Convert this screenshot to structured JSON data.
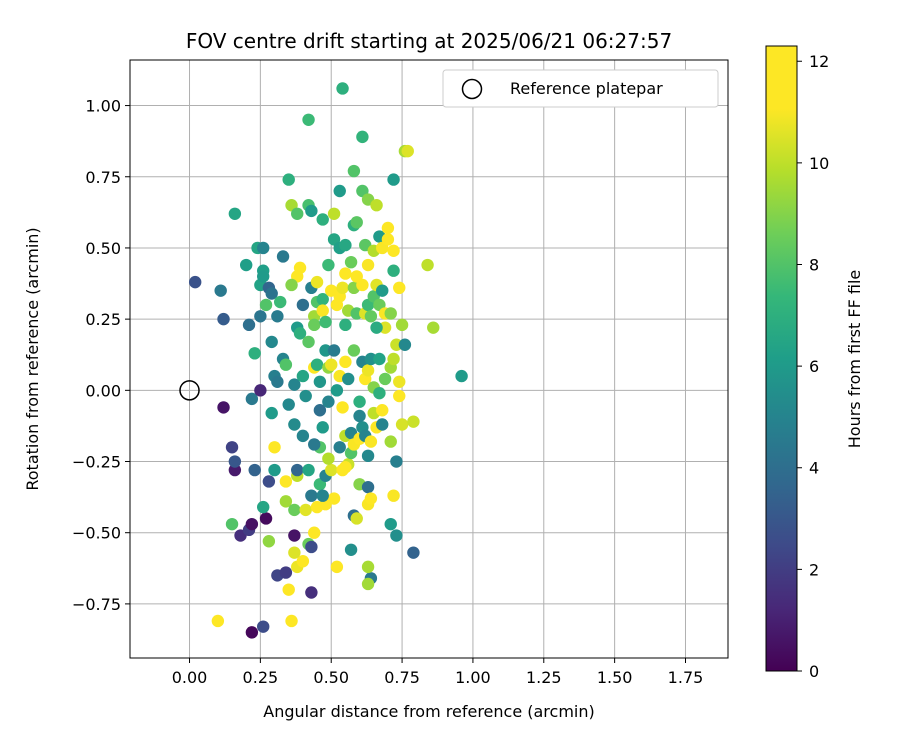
{
  "chart_data": {
    "type": "scatter",
    "title": "FOV centre drift starting at 2025/06/21 06:27:57",
    "xlabel": "Angular distance from reference (arcmin)",
    "ylabel": "Rotation from reference (arcmin)",
    "xlim": [
      -0.21,
      1.9
    ],
    "ylim": [
      -0.94,
      1.16
    ],
    "x_ticks": [
      "0.00",
      "0.25",
      "0.50",
      "0.75",
      "1.00",
      "1.25",
      "1.50",
      "1.75"
    ],
    "x_tick_values": [
      0,
      0.25,
      0.5,
      0.75,
      1.0,
      1.25,
      1.5,
      1.75
    ],
    "y_ticks": [
      "−0.75",
      "−0.50",
      "−0.25",
      "0.00",
      "0.25",
      "0.50",
      "0.75",
      "1.00"
    ],
    "y_tick_values": [
      -0.75,
      -0.5,
      -0.25,
      0,
      0.25,
      0.5,
      0.75,
      1.0
    ],
    "grid": true,
    "legend": {
      "position": "upper right",
      "entries": [
        {
          "label": "Reference platepar",
          "marker": "open-circle"
        }
      ]
    },
    "reference_point": {
      "x": 0.0,
      "y": 0.0
    },
    "colorbar": {
      "label": "Hours from first FF file",
      "range": [
        0,
        12.3
      ],
      "ticks": [
        "0",
        "2",
        "4",
        "6",
        "8",
        "10",
        "12"
      ],
      "tick_values": [
        0,
        2,
        4,
        6,
        8,
        10,
        12
      ],
      "colormap": "viridis"
    },
    "points": [
      {
        "x": 0.1,
        "y": -0.81,
        "h": 12.0
      },
      {
        "x": 0.22,
        "y": -0.85,
        "h": 0.2
      },
      {
        "x": 0.26,
        "y": -0.83,
        "h": 2.6
      },
      {
        "x": 0.36,
        "y": -0.81,
        "h": 11.8
      },
      {
        "x": 0.35,
        "y": -0.7,
        "h": 11.5
      },
      {
        "x": 0.43,
        "y": -0.71,
        "h": 1.5
      },
      {
        "x": 0.31,
        "y": -0.65,
        "h": 2.3
      },
      {
        "x": 0.34,
        "y": -0.64,
        "h": 2.0
      },
      {
        "x": 0.38,
        "y": -0.62,
        "h": 10.8
      },
      {
        "x": 0.4,
        "y": -0.6,
        "h": 12.0
      },
      {
        "x": 0.52,
        "y": -0.62,
        "h": 11.8
      },
      {
        "x": 0.64,
        "y": -0.66,
        "h": 4.5
      },
      {
        "x": 0.63,
        "y": -0.68,
        "h": 9.5
      },
      {
        "x": 0.18,
        "y": -0.51,
        "h": 1.5
      },
      {
        "x": 0.21,
        "y": -0.49,
        "h": 2.0
      },
      {
        "x": 0.22,
        "y": -0.47,
        "h": 0.5
      },
      {
        "x": 0.15,
        "y": -0.47,
        "h": 8.0
      },
      {
        "x": 0.28,
        "y": -0.53,
        "h": 9.2
      },
      {
        "x": 0.27,
        "y": -0.45,
        "h": 0.3
      },
      {
        "x": 0.37,
        "y": -0.51,
        "h": 0.6
      },
      {
        "x": 0.42,
        "y": -0.54,
        "h": 8.5
      },
      {
        "x": 0.43,
        "y": -0.55,
        "h": 2.6
      },
      {
        "x": 0.37,
        "y": -0.57,
        "h": 10.5
      },
      {
        "x": 0.44,
        "y": -0.5,
        "h": 12.0
      },
      {
        "x": 0.57,
        "y": -0.56,
        "h": 5.5
      },
      {
        "x": 0.63,
        "y": -0.62,
        "h": 9.6
      },
      {
        "x": 0.71,
        "y": -0.47,
        "h": 6.0
      },
      {
        "x": 0.73,
        "y": -0.51,
        "h": 5.5
      },
      {
        "x": 0.79,
        "y": -0.57,
        "h": 3.5
      },
      {
        "x": 0.16,
        "y": -0.28,
        "h": 0.8
      },
      {
        "x": 0.16,
        "y": -0.25,
        "h": 3.0
      },
      {
        "x": 0.15,
        "y": -0.2,
        "h": 2.2
      },
      {
        "x": 0.23,
        "y": -0.28,
        "h": 3.5
      },
      {
        "x": 0.26,
        "y": -0.41,
        "h": 6.5
      },
      {
        "x": 0.28,
        "y": -0.32,
        "h": 2.6
      },
      {
        "x": 0.3,
        "y": -0.28,
        "h": 6.0
      },
      {
        "x": 0.3,
        "y": -0.2,
        "h": 11.6
      },
      {
        "x": 0.34,
        "y": -0.39,
        "h": 9.5
      },
      {
        "x": 0.34,
        "y": -0.32,
        "h": 11.8
      },
      {
        "x": 0.37,
        "y": -0.42,
        "h": 8.5
      },
      {
        "x": 0.38,
        "y": -0.3,
        "h": 10.0
      },
      {
        "x": 0.38,
        "y": -0.28,
        "h": 3.6
      },
      {
        "x": 0.41,
        "y": -0.42,
        "h": 10.6
      },
      {
        "x": 0.43,
        "y": -0.37,
        "h": 4.5
      },
      {
        "x": 0.45,
        "y": -0.41,
        "h": 11.8
      },
      {
        "x": 0.46,
        "y": -0.33,
        "h": 7.5
      },
      {
        "x": 0.48,
        "y": -0.3,
        "h": 5.0
      },
      {
        "x": 0.48,
        "y": -0.4,
        "h": 12.0
      },
      {
        "x": 0.51,
        "y": -0.38,
        "h": 11.4
      },
      {
        "x": 0.5,
        "y": -0.28,
        "h": 10.5
      },
      {
        "x": 0.49,
        "y": -0.24,
        "h": 9.8
      },
      {
        "x": 0.54,
        "y": -0.28,
        "h": 11.8
      },
      {
        "x": 0.56,
        "y": -0.26,
        "h": 10.2
      },
      {
        "x": 0.58,
        "y": -0.44,
        "h": 4.0
      },
      {
        "x": 0.59,
        "y": -0.45,
        "h": 10.4
      },
      {
        "x": 0.6,
        "y": -0.33,
        "h": 9.0
      },
      {
        "x": 0.63,
        "y": -0.34,
        "h": 4.0
      },
      {
        "x": 0.63,
        "y": -0.4,
        "h": 11.0
      },
      {
        "x": 0.64,
        "y": -0.38,
        "h": 11.8
      },
      {
        "x": 0.72,
        "y": -0.37,
        "h": 11.0
      },
      {
        "x": 0.73,
        "y": -0.25,
        "h": 4.8
      },
      {
        "x": 0.02,
        "y": 0.38,
        "h": 2.8
      },
      {
        "x": 0.11,
        "y": 0.35,
        "h": 4.5
      },
      {
        "x": 0.12,
        "y": 0.25,
        "h": 3.2
      },
      {
        "x": 0.12,
        "y": -0.06,
        "h": 0.6
      },
      {
        "x": 0.16,
        "y": 0.62,
        "h": 6.5
      },
      {
        "x": 0.2,
        "y": 0.44,
        "h": 6.2
      },
      {
        "x": 0.21,
        "y": 0.23,
        "h": 4.0
      },
      {
        "x": 0.22,
        "y": -0.03,
        "h": 4.5
      },
      {
        "x": 0.23,
        "y": 0.13,
        "h": 7.0
      },
      {
        "x": 0.24,
        "y": 0.5,
        "h": 6.5
      },
      {
        "x": 0.25,
        "y": 0.37,
        "h": 6.4
      },
      {
        "x": 0.25,
        "y": 0.26,
        "h": 4.3
      },
      {
        "x": 0.25,
        "y": 0.0,
        "h": 1.2
      },
      {
        "x": 0.26,
        "y": 0.42,
        "h": 6.2
      },
      {
        "x": 0.26,
        "y": 0.4,
        "h": 6.0
      },
      {
        "x": 0.26,
        "y": 0.5,
        "h": 5.0
      },
      {
        "x": 0.27,
        "y": 0.3,
        "h": 8.0
      },
      {
        "x": 0.28,
        "y": 0.36,
        "h": 3.6
      },
      {
        "x": 0.29,
        "y": 0.34,
        "h": 4.2
      },
      {
        "x": 0.29,
        "y": 0.17,
        "h": 5.2
      },
      {
        "x": 0.3,
        "y": 0.05,
        "h": 4.8
      },
      {
        "x": 0.31,
        "y": 0.03,
        "h": 4.5
      },
      {
        "x": 0.29,
        "y": -0.08,
        "h": 6.0
      },
      {
        "x": 0.31,
        "y": 0.26,
        "h": 4.6
      },
      {
        "x": 0.32,
        "y": 0.31,
        "h": 7.5
      },
      {
        "x": 0.33,
        "y": 0.47,
        "h": 4.5
      },
      {
        "x": 0.33,
        "y": 0.11,
        "h": 5.0
      },
      {
        "x": 0.35,
        "y": 0.74,
        "h": 7.0
      },
      {
        "x": 0.35,
        "y": -0.05,
        "h": 5.2
      },
      {
        "x": 0.36,
        "y": 0.65,
        "h": 9.6
      },
      {
        "x": 0.37,
        "y": 0.02,
        "h": 5.0
      },
      {
        "x": 0.37,
        "y": -0.12,
        "h": 5.3
      },
      {
        "x": 0.38,
        "y": 0.62,
        "h": 8.0
      },
      {
        "x": 0.38,
        "y": 0.4,
        "h": 11.3
      },
      {
        "x": 0.38,
        "y": 0.22,
        "h": 6.0
      },
      {
        "x": 0.39,
        "y": 0.2,
        "h": 7.0
      },
      {
        "x": 0.4,
        "y": 0.3,
        "h": 4.0
      },
      {
        "x": 0.4,
        "y": 0.05,
        "h": 6.5
      },
      {
        "x": 0.41,
        "y": -0.02,
        "h": 5.5
      },
      {
        "x": 0.42,
        "y": 0.95,
        "h": 7.5
      },
      {
        "x": 0.42,
        "y": 0.65,
        "h": 7.8
      },
      {
        "x": 0.42,
        "y": 0.17,
        "h": 8.2
      },
      {
        "x": 0.43,
        "y": 0.63,
        "h": 6.0
      },
      {
        "x": 0.43,
        "y": 0.36,
        "h": 4.8
      },
      {
        "x": 0.44,
        "y": 0.26,
        "h": 9.5
      },
      {
        "x": 0.44,
        "y": 0.23,
        "h": 8.5
      },
      {
        "x": 0.44,
        "y": 0.08,
        "h": 12.0
      },
      {
        "x": 0.45,
        "y": 0.38,
        "h": 10.8
      },
      {
        "x": 0.45,
        "y": 0.31,
        "h": 8.0
      },
      {
        "x": 0.45,
        "y": 0.09,
        "h": 7.0
      },
      {
        "x": 0.46,
        "y": 0.03,
        "h": 5.8
      },
      {
        "x": 0.46,
        "y": -0.07,
        "h": 4.0
      },
      {
        "x": 0.46,
        "y": -0.2,
        "h": 8.0
      },
      {
        "x": 0.47,
        "y": 0.6,
        "h": 7.0
      },
      {
        "x": 0.47,
        "y": 0.32,
        "h": 7.2
      },
      {
        "x": 0.47,
        "y": 0.28,
        "h": 11.0
      },
      {
        "x": 0.47,
        "y": -0.13,
        "h": 6.0
      },
      {
        "x": 0.48,
        "y": 0.14,
        "h": 5.8
      },
      {
        "x": 0.49,
        "y": 0.08,
        "h": 9.2
      },
      {
        "x": 0.49,
        "y": -0.04,
        "h": 5.0
      },
      {
        "x": 0.5,
        "y": 0.35,
        "h": 12.0
      },
      {
        "x": 0.5,
        "y": 0.09,
        "h": 10.8
      },
      {
        "x": 0.51,
        "y": 0.62,
        "h": 10.0
      },
      {
        "x": 0.51,
        "y": 0.53,
        "h": 6.5
      },
      {
        "x": 0.51,
        "y": 0.14,
        "h": 4.6
      },
      {
        "x": 0.52,
        "y": 0.3,
        "h": 12.0
      },
      {
        "x": 0.52,
        "y": 0.0,
        "h": 6.0
      },
      {
        "x": 0.53,
        "y": 0.7,
        "h": 6.0
      },
      {
        "x": 0.53,
        "y": 0.5,
        "h": 6.2
      },
      {
        "x": 0.53,
        "y": 0.33,
        "h": 11.8
      },
      {
        "x": 0.53,
        "y": 0.05,
        "h": 11.0
      },
      {
        "x": 0.54,
        "y": 1.06,
        "h": 7.0
      },
      {
        "x": 0.54,
        "y": 0.36,
        "h": 10.8
      },
      {
        "x": 0.54,
        "y": -0.06,
        "h": 11.8
      },
      {
        "x": 0.55,
        "y": 0.51,
        "h": 6.6
      },
      {
        "x": 0.55,
        "y": 0.41,
        "h": 12.0
      },
      {
        "x": 0.55,
        "y": 0.1,
        "h": 11.8
      },
      {
        "x": 0.55,
        "y": -0.16,
        "h": 10.0
      },
      {
        "x": 0.55,
        "y": -0.27,
        "h": 12.0
      },
      {
        "x": 0.56,
        "y": 0.28,
        "h": 9.5
      },
      {
        "x": 0.56,
        "y": 0.04,
        "h": 5.5
      },
      {
        "x": 0.57,
        "y": 0.45,
        "h": 8.5
      },
      {
        "x": 0.57,
        "y": -0.15,
        "h": 5.0
      },
      {
        "x": 0.57,
        "y": -0.22,
        "h": 8.0
      },
      {
        "x": 0.58,
        "y": 0.77,
        "h": 8.0
      },
      {
        "x": 0.58,
        "y": 0.58,
        "h": 7.0
      },
      {
        "x": 0.58,
        "y": 0.36,
        "h": 9.0
      },
      {
        "x": 0.58,
        "y": 0.14,
        "h": 8.5
      },
      {
        "x": 0.58,
        "y": -0.19,
        "h": 11.0
      },
      {
        "x": 0.59,
        "y": 0.59,
        "h": 8.2
      },
      {
        "x": 0.59,
        "y": 0.4,
        "h": 12.0
      },
      {
        "x": 0.59,
        "y": 0.27,
        "h": 8.0
      },
      {
        "x": 0.6,
        "y": -0.04,
        "h": 7.0
      },
      {
        "x": 0.6,
        "y": -0.17,
        "h": 11.8
      },
      {
        "x": 0.61,
        "y": 0.89,
        "h": 7.2
      },
      {
        "x": 0.61,
        "y": 0.7,
        "h": 8.0
      },
      {
        "x": 0.61,
        "y": 0.37,
        "h": 11.6
      },
      {
        "x": 0.61,
        "y": 0.1,
        "h": 5.0
      },
      {
        "x": 0.61,
        "y": -0.13,
        "h": 5.5
      },
      {
        "x": 0.62,
        "y": 0.51,
        "h": 8.2
      },
      {
        "x": 0.62,
        "y": 0.27,
        "h": 10.5
      },
      {
        "x": 0.62,
        "y": 0.04,
        "h": 11.4
      },
      {
        "x": 0.62,
        "y": -0.16,
        "h": 5.0
      },
      {
        "x": 0.63,
        "y": 0.67,
        "h": 9.0
      },
      {
        "x": 0.63,
        "y": 0.44,
        "h": 11.0
      },
      {
        "x": 0.63,
        "y": 0.3,
        "h": 7.5
      },
      {
        "x": 0.63,
        "y": 0.07,
        "h": 10.8
      },
      {
        "x": 0.63,
        "y": -0.23,
        "h": 5.2
      },
      {
        "x": 0.64,
        "y": 0.26,
        "h": 8.4
      },
      {
        "x": 0.64,
        "y": 0.11,
        "h": 5.6
      },
      {
        "x": 0.64,
        "y": -0.18,
        "h": 11.0
      },
      {
        "x": 0.65,
        "y": 0.49,
        "h": 9.8
      },
      {
        "x": 0.65,
        "y": 0.33,
        "h": 8.0
      },
      {
        "x": 0.65,
        "y": 0.01,
        "h": 9.0
      },
      {
        "x": 0.65,
        "y": -0.08,
        "h": 10.0
      },
      {
        "x": 0.66,
        "y": 0.65,
        "h": 10.0
      },
      {
        "x": 0.66,
        "y": 0.37,
        "h": 10.6
      },
      {
        "x": 0.66,
        "y": -0.13,
        "h": 11.2
      },
      {
        "x": 0.67,
        "y": 0.54,
        "h": 6.0
      },
      {
        "x": 0.67,
        "y": 0.3,
        "h": 8.5
      },
      {
        "x": 0.67,
        "y": 0.11,
        "h": 6.4
      },
      {
        "x": 0.67,
        "y": -0.01,
        "h": 7.0
      },
      {
        "x": 0.68,
        "y": 0.5,
        "h": 11.0
      },
      {
        "x": 0.68,
        "y": 0.35,
        "h": 6.0
      },
      {
        "x": 0.68,
        "y": -0.07,
        "h": 11.9
      },
      {
        "x": 0.68,
        "y": -0.12,
        "h": 5.0
      },
      {
        "x": 0.69,
        "y": 0.22,
        "h": 10.5
      },
      {
        "x": 0.69,
        "y": 0.27,
        "h": 11.0
      },
      {
        "x": 0.69,
        "y": 0.04,
        "h": 8.5
      },
      {
        "x": 0.7,
        "y": 0.57,
        "h": 11.2
      },
      {
        "x": 0.7,
        "y": 0.53,
        "h": 11.6
      },
      {
        "x": 0.71,
        "y": 0.27,
        "h": 9.0
      },
      {
        "x": 0.71,
        "y": 0.08,
        "h": 9.5
      },
      {
        "x": 0.71,
        "y": -0.18,
        "h": 9.5
      },
      {
        "x": 0.72,
        "y": 0.49,
        "h": 11.6
      },
      {
        "x": 0.72,
        "y": 0.42,
        "h": 7.0
      },
      {
        "x": 0.72,
        "y": 0.11,
        "h": 10.0
      },
      {
        "x": 0.72,
        "y": 0.74,
        "h": 6.0
      },
      {
        "x": 0.73,
        "y": 0.16,
        "h": 10.2
      },
      {
        "x": 0.74,
        "y": 0.36,
        "h": 12.0
      },
      {
        "x": 0.74,
        "y": 0.03,
        "h": 10.8
      },
      {
        "x": 0.74,
        "y": -0.02,
        "h": 11.4
      },
      {
        "x": 0.75,
        "y": 0.23,
        "h": 9.5
      },
      {
        "x": 0.75,
        "y": -0.12,
        "h": 10.4
      },
      {
        "x": 0.76,
        "y": 0.84,
        "h": 9.6
      },
      {
        "x": 0.76,
        "y": 0.16,
        "h": 5.2
      },
      {
        "x": 0.77,
        "y": 0.84,
        "h": 10.5
      },
      {
        "x": 0.79,
        "y": -0.11,
        "h": 10.2
      },
      {
        "x": 0.84,
        "y": 0.44,
        "h": 10.0
      },
      {
        "x": 0.86,
        "y": 0.22,
        "h": 9.6
      },
      {
        "x": 0.96,
        "y": 0.05,
        "h": 6.0
      },
      {
        "x": 0.42,
        "y": -0.28,
        "h": 6.5
      },
      {
        "x": 0.4,
        "y": -0.16,
        "h": 5.0
      },
      {
        "x": 0.44,
        "y": -0.19,
        "h": 4.5
      },
      {
        "x": 0.47,
        "y": -0.37,
        "h": 5.0
      },
      {
        "x": 0.53,
        "y": -0.2,
        "h": 4.8
      },
      {
        "x": 0.6,
        "y": -0.09,
        "h": 5.0
      },
      {
        "x": 0.34,
        "y": 0.09,
        "h": 8.0
      },
      {
        "x": 0.36,
        "y": 0.37,
        "h": 9.0
      },
      {
        "x": 0.39,
        "y": 0.43,
        "h": 11.5
      },
      {
        "x": 0.49,
        "y": 0.44,
        "h": 7.5
      },
      {
        "x": 0.55,
        "y": 0.23,
        "h": 7.0
      },
      {
        "x": 0.48,
        "y": 0.24,
        "h": 7.6
      },
      {
        "x": 0.66,
        "y": 0.22,
        "h": 6.8
      }
    ]
  }
}
